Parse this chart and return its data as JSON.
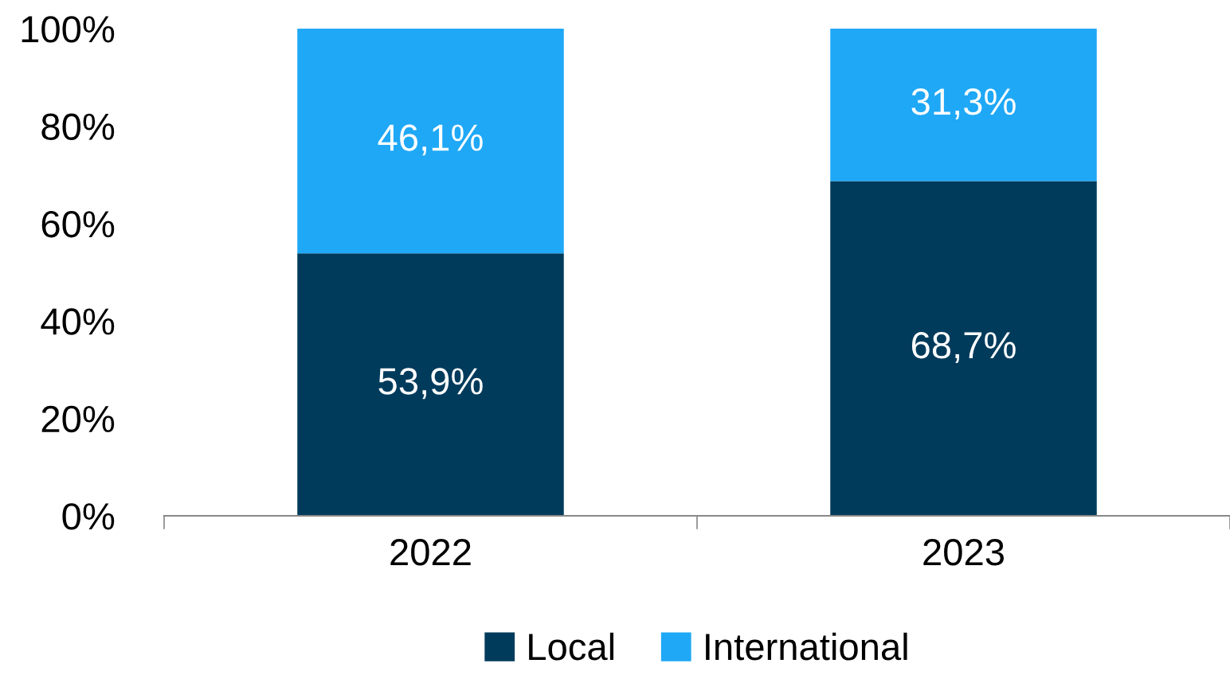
{
  "chart_data": {
    "type": "bar",
    "stacked": true,
    "categories": [
      "2022",
      "2023"
    ],
    "series": [
      {
        "name": "Local",
        "color": "#003b5c",
        "values": [
          53.9,
          68.7
        ],
        "value_labels": [
          "53,9%",
          "68,7%"
        ]
      },
      {
        "name": "International",
        "color": "#1fa8f6",
        "values": [
          46.1,
          31.3
        ],
        "value_labels": [
          "46,1%",
          "31,3%"
        ]
      }
    ],
    "ylim": [
      0,
      100
    ],
    "yticks": [
      {
        "value": 0,
        "label": "0%"
      },
      {
        "value": 20,
        "label": "20%"
      },
      {
        "value": 40,
        "label": "40%"
      },
      {
        "value": 60,
        "label": "60%"
      },
      {
        "value": 80,
        "label": "80%"
      },
      {
        "value": 100,
        "label": "100%"
      }
    ],
    "grid": false,
    "legend": "bottom"
  }
}
